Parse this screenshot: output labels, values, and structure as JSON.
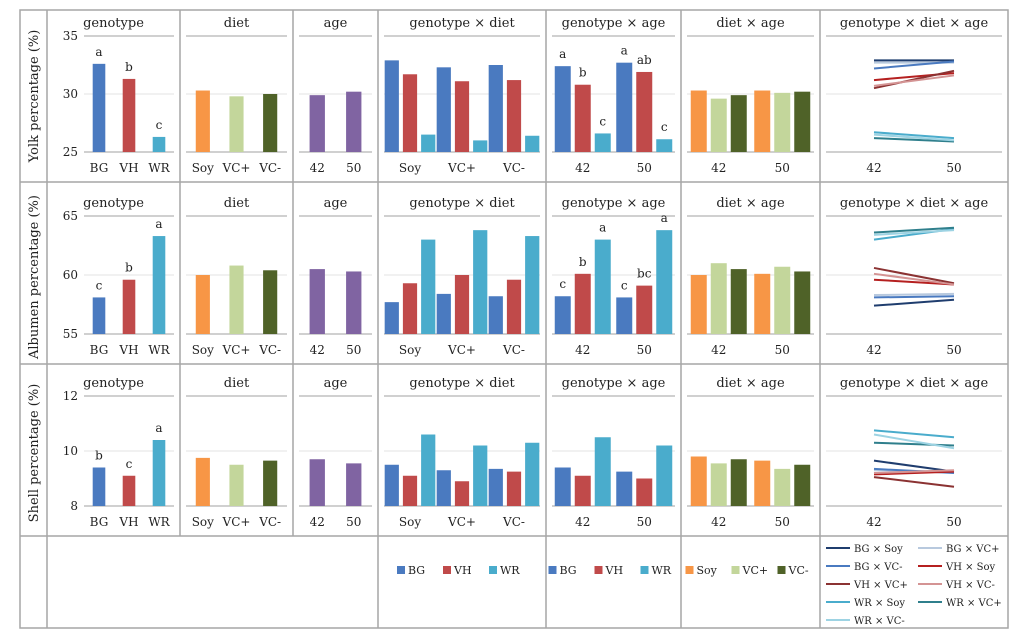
{
  "colors": {
    "BG": "#4a7ac0",
    "VH": "#c04a4a",
    "WR": "#4aaccc",
    "Soy": "#f79646",
    "VC+": "#c3d69b",
    "VC-": "#4f6228",
    "age": "#8064a2"
  },
  "panel_titles": [
    "genotype",
    "diet",
    "age",
    "genotype × diet",
    "genotype × age",
    "diet × age",
    "genotype × diet × age"
  ],
  "rows": [
    {
      "ylabel": "Yolk percentage (%)",
      "ylim": [
        25,
        35
      ],
      "ticks": [
        "25",
        "30",
        "35"
      ],
      "genotype": {
        "categories": [
          "BG",
          "VH",
          "WR"
        ],
        "values": [
          32.6,
          31.3,
          26.3
        ],
        "letters": [
          "a",
          "b",
          "c"
        ]
      },
      "diet": {
        "categories": [
          "Soy",
          "VC+",
          "VC-"
        ],
        "values": [
          30.3,
          29.8,
          30.0
        ]
      },
      "age": {
        "categories": [
          "42",
          "50"
        ],
        "values": [
          29.9,
          30.2
        ]
      },
      "genotype_diet": {
        "groups": [
          "Soy",
          "VC+",
          "VC-"
        ],
        "series": [
          "BG",
          "VH",
          "WR"
        ],
        "values": [
          [
            32.9,
            31.7,
            26.5
          ],
          [
            32.3,
            31.1,
            26.0
          ],
          [
            32.5,
            31.2,
            26.4
          ]
        ]
      },
      "genotype_age": {
        "groups": [
          "42",
          "50"
        ],
        "series": [
          "BG",
          "VH",
          "WR"
        ],
        "values": [
          [
            32.4,
            30.8,
            26.6
          ],
          [
            32.7,
            31.9,
            26.1
          ]
        ],
        "letters": [
          [
            "a",
            "b",
            "c"
          ],
          [
            "a",
            "ab",
            "c"
          ]
        ]
      },
      "diet_age": {
        "groups": [
          "42",
          "50"
        ],
        "series": [
          "Soy",
          "VC+",
          "VC-"
        ],
        "values": [
          [
            30.3,
            29.6,
            29.9
          ],
          [
            30.3,
            30.1,
            30.2
          ]
        ]
      },
      "three_way": {
        "x": [
          "42",
          "50"
        ],
        "lines": [
          {
            "name": "BG × Soy",
            "values": [
              32.9,
              32.9
            ]
          },
          {
            "name": "BG × VC+",
            "values": [
              32.7,
              32.7
            ]
          },
          {
            "name": "BG × VC-",
            "values": [
              32.2,
              32.8
            ]
          },
          {
            "name": "VH × Soy",
            "values": [
              31.2,
              31.8
            ]
          },
          {
            "name": "VH × VC+",
            "values": [
              30.5,
              32.0
            ]
          },
          {
            "name": "VH × VC-",
            "values": [
              30.7,
              31.6
            ]
          },
          {
            "name": "WR × Soy",
            "values": [
              26.7,
              26.2
            ]
          },
          {
            "name": "WR × VC+",
            "values": [
              26.2,
              25.9
            ]
          },
          {
            "name": "WR × VC-",
            "values": [
              26.5,
              26.0
            ]
          }
        ]
      }
    },
    {
      "ylabel": "Albumen percentage (%)",
      "ylim": [
        55,
        65
      ],
      "ticks": [
        "55",
        "60",
        "65"
      ],
      "genotype": {
        "categories": [
          "BG",
          "VH",
          "WR"
        ],
        "values": [
          58.1,
          59.6,
          63.3
        ],
        "letters": [
          "c",
          "b",
          "a"
        ]
      },
      "diet": {
        "categories": [
          "Soy",
          "VC+",
          "VC-"
        ],
        "values": [
          60.0,
          60.8,
          60.4
        ]
      },
      "age": {
        "categories": [
          "42",
          "50"
        ],
        "values": [
          60.5,
          60.3
        ]
      },
      "genotype_diet": {
        "groups": [
          "Soy",
          "VC+",
          "VC-"
        ],
        "series": [
          "BG",
          "VH",
          "WR"
        ],
        "values": [
          [
            57.7,
            59.3,
            63.0
          ],
          [
            58.4,
            60.0,
            63.8
          ],
          [
            58.2,
            59.6,
            63.3
          ]
        ]
      },
      "genotype_age": {
        "groups": [
          "42",
          "50"
        ],
        "series": [
          "BG",
          "VH",
          "WR"
        ],
        "values": [
          [
            58.2,
            60.1,
            63.0
          ],
          [
            58.1,
            59.1,
            63.8
          ]
        ],
        "letters": [
          [
            "c",
            "b",
            "a"
          ],
          [
            "c",
            "bc",
            "a"
          ]
        ]
      },
      "diet_age": {
        "groups": [
          "42",
          "50"
        ],
        "series": [
          "Soy",
          "VC+",
          "VC-"
        ],
        "values": [
          [
            60.0,
            61.0,
            60.5
          ],
          [
            60.1,
            60.7,
            60.3
          ]
        ]
      },
      "three_way": {
        "x": [
          "42",
          "50"
        ],
        "lines": [
          {
            "name": "BG × Soy",
            "values": [
              57.4,
              57.9
            ]
          },
          {
            "name": "BG × VC+",
            "values": [
              58.3,
              58.4
            ]
          },
          {
            "name": "BG × VC-",
            "values": [
              58.1,
              58.2
            ]
          },
          {
            "name": "VH × Soy",
            "values": [
              59.6,
              59.2
            ]
          },
          {
            "name": "VH × VC+",
            "values": [
              60.6,
              59.3
            ]
          },
          {
            "name": "VH × VC-",
            "values": [
              60.1,
              59.2
            ]
          },
          {
            "name": "WR × Soy",
            "values": [
              63.0,
              63.9
            ]
          },
          {
            "name": "WR × VC+",
            "values": [
              63.6,
              64.0
            ]
          },
          {
            "name": "WR × VC-",
            "values": [
              63.4,
              63.8
            ]
          }
        ]
      }
    },
    {
      "ylabel": "Shell percentage (%)",
      "ylim": [
        8,
        12
      ],
      "ticks": [
        "8",
        "10",
        "12"
      ],
      "genotype": {
        "categories": [
          "BG",
          "VH",
          "WR"
        ],
        "values": [
          9.4,
          9.1,
          10.4
        ],
        "letters": [
          "b",
          "c",
          "a"
        ]
      },
      "diet": {
        "categories": [
          "Soy",
          "VC+",
          "VC-"
        ],
        "values": [
          9.75,
          9.5,
          9.65
        ]
      },
      "age": {
        "categories": [
          "42",
          "50"
        ],
        "values": [
          9.7,
          9.55
        ]
      },
      "genotype_diet": {
        "groups": [
          "Soy",
          "VC+",
          "VC-"
        ],
        "series": [
          "BG",
          "VH",
          "WR"
        ],
        "values": [
          [
            9.5,
            9.1,
            10.6
          ],
          [
            9.3,
            8.9,
            10.2
          ],
          [
            9.35,
            9.25,
            10.3
          ]
        ]
      },
      "genotype_age": {
        "groups": [
          "42",
          "50"
        ],
        "series": [
          "BG",
          "VH",
          "WR"
        ],
        "values": [
          [
            9.4,
            9.1,
            10.5
          ],
          [
            9.25,
            9.0,
            10.2
          ]
        ]
      },
      "diet_age": {
        "groups": [
          "42",
          "50"
        ],
        "series": [
          "Soy",
          "VC+",
          "VC-"
        ],
        "values": [
          [
            9.8,
            9.55,
            9.7
          ],
          [
            9.65,
            9.35,
            9.5
          ]
        ]
      },
      "three_way": {
        "x": [
          "42",
          "50"
        ],
        "lines": [
          {
            "name": "BG × Soy",
            "values": [
              9.65,
              9.25
            ]
          },
          {
            "name": "BG × VC+",
            "values": [
              9.3,
              9.25
            ]
          },
          {
            "name": "BG × VC-",
            "values": [
              9.35,
              9.2
            ]
          },
          {
            "name": "VH × Soy",
            "values": [
              9.15,
              9.25
            ]
          },
          {
            "name": "VH × VC+",
            "values": [
              9.05,
              8.7
            ]
          },
          {
            "name": "VH × VC-",
            "values": [
              9.2,
              9.3
            ]
          },
          {
            "name": "WR × Soy",
            "values": [
              10.75,
              10.5
            ]
          },
          {
            "name": "WR × VC+",
            "values": [
              10.3,
              10.2
            ]
          },
          {
            "name": "WR × VC-",
            "values": [
              10.6,
              10.1
            ]
          }
        ]
      }
    }
  ],
  "legends": {
    "genotype": [
      "BG",
      "VH",
      "WR"
    ],
    "diet": [
      "Soy",
      "VC+",
      "VC-"
    ],
    "three_way": [
      {
        "name": "BG × Soy",
        "color": "#1f3d6e"
      },
      {
        "name": "BG × VC+",
        "color": "#b8c9de"
      },
      {
        "name": "BG × VC-",
        "color": "#4a7ac0"
      },
      {
        "name": "VH × Soy",
        "color": "#b52020"
      },
      {
        "name": "VH × VC+",
        "color": "#8b3232"
      },
      {
        "name": "VH × VC-",
        "color": "#d49494"
      },
      {
        "name": "WR × Soy",
        "color": "#4aaccc"
      },
      {
        "name": "WR × VC+",
        "color": "#2f7f8c"
      },
      {
        "name": "WR × VC-",
        "color": "#9dd3e3"
      }
    ]
  }
}
